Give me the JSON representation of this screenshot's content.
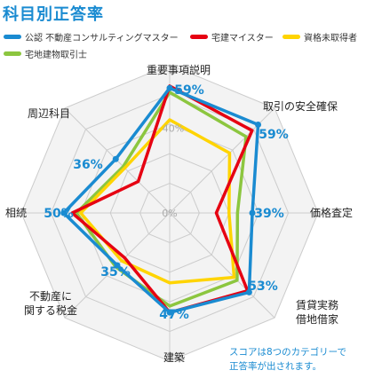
{
  "title": "科目別正答率",
  "legend": {
    "row1": [
      "公認 不動産コンサルティングマスター",
      "宅建マイスター",
      "資格未取得者"
    ],
    "row2": [
      "宅地建物取引士"
    ]
  },
  "note": [
    "スコアは8つのカテゴリーで",
    "正答率が出されます。"
  ],
  "colors": {
    "blue": "#1a8bd1",
    "red": "#e60012",
    "yellow": "#ffd400",
    "green": "#8cc63f",
    "grid_fill": "#f3f3f3",
    "grid_line": "#cccccc"
  },
  "chart_data": {
    "type": "radar",
    "categories": [
      "重要事項説明",
      "取引の安全確保",
      "価格査定",
      "賃貸実務 借地借家",
      "建築",
      "不動産に 関する税金",
      "相続",
      "周辺科目"
    ],
    "percent_labels": [
      "59%",
      "59%",
      "39%",
      "53%",
      "47%",
      "35%",
      "50%",
      "36%"
    ],
    "ring_labels": [
      "0%",
      "40%"
    ],
    "range": [
      0,
      70
    ],
    "series": [
      {
        "name": "公認 不動産コンサルティングマスター",
        "color": "blue",
        "values": [
          59,
          59,
          39,
          53,
          47,
          35,
          50,
          36
        ]
      },
      {
        "name": "宅建マイスター",
        "color": "red",
        "values": [
          60,
          55,
          22,
          52,
          47,
          30,
          46,
          21
        ]
      },
      {
        "name": "資格未取得者",
        "color": "yellow",
        "values": [
          44,
          40,
          28,
          43,
          33,
          32,
          42,
          30
        ]
      },
      {
        "name": "宅地建物取引士",
        "color": "green",
        "values": [
          57,
          51,
          32,
          45,
          44,
          36,
          44,
          31
        ]
      }
    ]
  }
}
